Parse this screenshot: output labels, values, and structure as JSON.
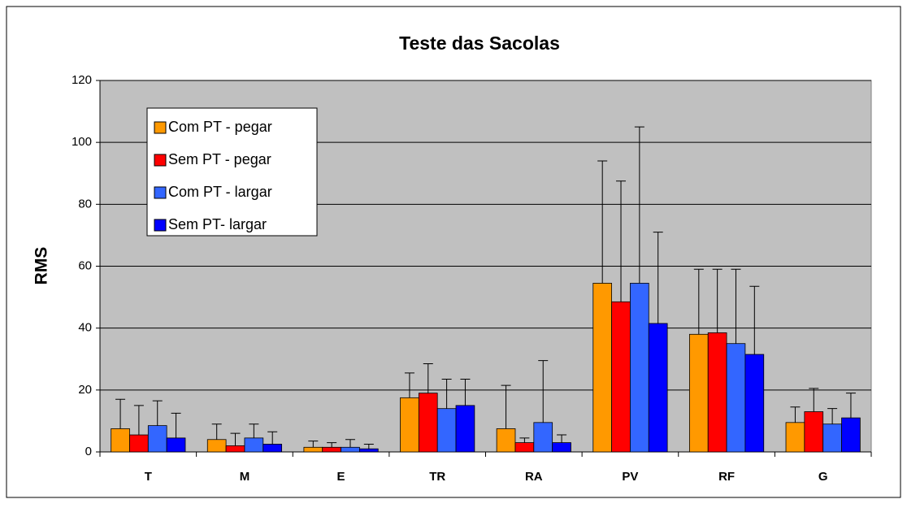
{
  "chart_data": {
    "type": "bar",
    "title": "Teste das Sacolas",
    "y_label": "RMS",
    "categories": [
      "T",
      "M",
      "E",
      "TR",
      "RA",
      "PV",
      "RF",
      "G"
    ],
    "series": [
      {
        "name": "Com PT - pegar",
        "color": "#ff9900",
        "values": [
          7.5,
          4,
          1.5,
          17.5,
          7.5,
          54.5,
          38,
          9.5
        ],
        "errors": [
          9.5,
          5,
          2,
          8,
          14,
          39.5,
          21,
          5
        ]
      },
      {
        "name": "Sem PT - pegar",
        "color": "#ff0000",
        "values": [
          5.5,
          2,
          1.5,
          19,
          3,
          48.5,
          38.5,
          13
        ],
        "errors": [
          9.5,
          4,
          1.5,
          9.5,
          1.5,
          39,
          20.5,
          7.5
        ]
      },
      {
        "name": "Com PT - largar",
        "color": "#3366ff",
        "values": [
          8.5,
          4.5,
          1.5,
          14,
          9.5,
          54.5,
          35,
          9
        ],
        "errors": [
          8,
          4.5,
          2.5,
          9.5,
          20,
          50.5,
          24,
          5
        ]
      },
      {
        "name": "Sem PT- largar",
        "color": "#0000ff",
        "values": [
          4.5,
          2.5,
          1,
          15,
          3,
          41.5,
          31.5,
          11
        ],
        "errors": [
          8,
          4,
          1.5,
          8.5,
          2.5,
          29.5,
          22,
          8
        ]
      }
    ],
    "ylim": [
      0,
      120
    ],
    "yticks": [
      0,
      20,
      40,
      60,
      80,
      100,
      120
    ],
    "grid": true,
    "legend": "upper left"
  }
}
